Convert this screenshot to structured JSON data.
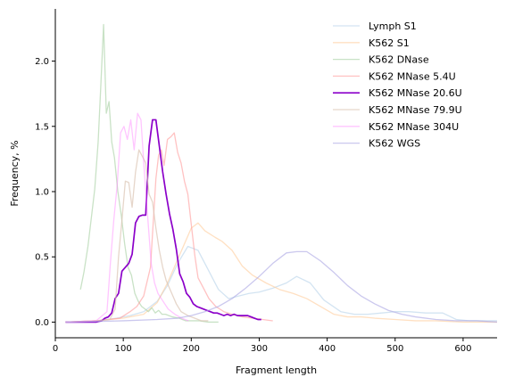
{
  "chart_data": {
    "type": "line",
    "title": "",
    "xlabel": "Fragment length",
    "ylabel": "Frequency, %",
    "xlim": [
      0,
      650
    ],
    "ylim": [
      -0.12,
      2.4
    ],
    "xticks": [
      0,
      100,
      200,
      300,
      400,
      500,
      600
    ],
    "yticks": [
      0.0,
      0.5,
      1.0,
      1.5,
      2.0
    ],
    "xtick_labels": [
      "0",
      "100",
      "200",
      "300",
      "400",
      "500",
      "600"
    ],
    "ytick_labels": [
      "0.0",
      "0.5",
      "1.0",
      "1.5",
      "2.0"
    ],
    "grid": false,
    "legend_position": "top-right",
    "series": [
      {
        "name": "Lymph S1",
        "color": "#aecde8",
        "alpha": 0.55,
        "width": 1.3,
        "x": [
          15,
          60,
          90,
          110,
          130,
          150,
          165,
          180,
          195,
          210,
          225,
          240,
          255,
          270,
          285,
          300,
          320,
          340,
          355,
          375,
          395,
          420,
          440,
          460,
          480,
          500,
          520,
          545,
          570,
          590,
          610,
          630,
          650
        ],
        "y": [
          0.0,
          0.01,
          0.03,
          0.05,
          0.08,
          0.16,
          0.28,
          0.45,
          0.58,
          0.55,
          0.4,
          0.25,
          0.18,
          0.2,
          0.22,
          0.23,
          0.26,
          0.3,
          0.35,
          0.3,
          0.17,
          0.08,
          0.06,
          0.06,
          0.07,
          0.08,
          0.08,
          0.07,
          0.07,
          0.02,
          0.01,
          0.01,
          0.01
        ]
      },
      {
        "name": "K562 S1",
        "color": "#ffcc99",
        "alpha": 0.6,
        "width": 1.3,
        "x": [
          15,
          60,
          100,
          130,
          150,
          165,
          180,
          190,
          200,
          210,
          220,
          235,
          245,
          260,
          275,
          290,
          310,
          330,
          350,
          370,
          390,
          410,
          430,
          450,
          470,
          500,
          530,
          560,
          600,
          650
        ],
        "y": [
          0.0,
          0.01,
          0.03,
          0.06,
          0.15,
          0.3,
          0.48,
          0.6,
          0.72,
          0.76,
          0.7,
          0.65,
          0.62,
          0.55,
          0.43,
          0.36,
          0.3,
          0.25,
          0.22,
          0.18,
          0.12,
          0.06,
          0.04,
          0.04,
          0.03,
          0.02,
          0.01,
          0.01,
          0.0,
          0.0
        ]
      },
      {
        "name": "K562 DNase",
        "color": "#a5cfa0",
        "alpha": 0.6,
        "width": 1.3,
        "x": [
          37,
          42,
          48,
          53,
          58,
          63,
          67,
          71,
          75,
          79,
          83,
          87,
          92,
          97,
          102,
          107,
          112,
          117,
          122,
          127,
          132,
          137,
          142,
          147,
          152,
          157,
          162,
          172,
          182,
          192,
          202,
          212,
          225,
          240
        ],
        "y": [
          0.25,
          0.38,
          0.58,
          0.8,
          1.02,
          1.38,
          1.82,
          2.28,
          1.6,
          1.69,
          1.38,
          1.26,
          1.0,
          0.82,
          0.6,
          0.42,
          0.36,
          0.22,
          0.16,
          0.12,
          0.1,
          0.08,
          0.11,
          0.07,
          0.09,
          0.06,
          0.06,
          0.04,
          0.03,
          0.01,
          0.01,
          0.01,
          0.0,
          0.0
        ]
      },
      {
        "name": "K562 MNase 5.4U",
        "color": "#ff9999",
        "alpha": 0.6,
        "width": 1.3,
        "x": [
          15,
          60,
          95,
          110,
          120,
          130,
          140,
          148,
          152,
          156,
          160,
          165,
          170,
          175,
          180,
          185,
          190,
          195,
          200,
          205,
          210,
          218,
          226,
          236,
          248,
          260,
          275,
          290,
          305,
          320
        ],
        "y": [
          0.0,
          0.01,
          0.03,
          0.08,
          0.12,
          0.2,
          0.42,
          1.1,
          1.28,
          1.32,
          1.2,
          1.4,
          1.42,
          1.45,
          1.3,
          1.22,
          1.08,
          0.98,
          0.75,
          0.52,
          0.34,
          0.26,
          0.18,
          0.12,
          0.08,
          0.06,
          0.04,
          0.03,
          0.02,
          0.01
        ]
      },
      {
        "name": "K562 MNase 20.6U",
        "color": "#8b00c9",
        "alpha": 1,
        "width": 1.7,
        "x": [
          15,
          50,
          60,
          68,
          73,
          78,
          83,
          88,
          93,
          98,
          103,
          108,
          113,
          118,
          123,
          128,
          133,
          138,
          143,
          148,
          153,
          158,
          163,
          168,
          173,
          178,
          183,
          188,
          193,
          198,
          203,
          208,
          213,
          218,
          223,
          228,
          233,
          238,
          243,
          248,
          253,
          258,
          263,
          268,
          273,
          278,
          283,
          288,
          293,
          298,
          303
        ],
        "y": [
          0.0,
          0.0,
          0.0,
          0.01,
          0.03,
          0.04,
          0.07,
          0.18,
          0.22,
          0.39,
          0.42,
          0.45,
          0.52,
          0.76,
          0.81,
          0.82,
          0.82,
          1.35,
          1.55,
          1.55,
          1.35,
          1.15,
          0.98,
          0.83,
          0.71,
          0.56,
          0.37,
          0.31,
          0.22,
          0.19,
          0.14,
          0.12,
          0.11,
          0.1,
          0.09,
          0.08,
          0.07,
          0.07,
          0.06,
          0.05,
          0.06,
          0.05,
          0.06,
          0.05,
          0.05,
          0.05,
          0.05,
          0.04,
          0.03,
          0.02,
          0.02
        ]
      },
      {
        "name": "K562 MNase 79.9U",
        "color": "#dbc4b4",
        "alpha": 0.7,
        "width": 1.3,
        "x": [
          15,
          60,
          80,
          88,
          93,
          98,
          103,
          108,
          113,
          118,
          123,
          128,
          133,
          138,
          143,
          148,
          153,
          158,
          163,
          168,
          173,
          178,
          185,
          195,
          205,
          215,
          225
        ],
        "y": [
          0.0,
          0.01,
          0.02,
          0.1,
          0.5,
          0.78,
          1.08,
          1.07,
          0.88,
          1.15,
          1.32,
          1.27,
          1.22,
          0.98,
          0.92,
          0.72,
          0.55,
          0.42,
          0.32,
          0.26,
          0.2,
          0.14,
          0.08,
          0.05,
          0.03,
          0.01,
          0.01
        ]
      },
      {
        "name": "K562 MNase 304U",
        "color": "#ff80ff",
        "alpha": 0.45,
        "width": 1.3,
        "x": [
          15,
          60,
          76,
          81,
          86,
          91,
          96,
          101,
          106,
          111,
          116,
          121,
          126,
          131,
          136,
          141,
          146,
          151,
          156,
          161,
          166,
          171,
          176,
          186,
          196
        ],
        "y": [
          0.0,
          0.01,
          0.08,
          0.45,
          0.78,
          1.05,
          1.45,
          1.5,
          1.4,
          1.55,
          1.32,
          1.6,
          1.55,
          1.15,
          0.8,
          0.45,
          0.3,
          0.22,
          0.18,
          0.14,
          0.1,
          0.08,
          0.06,
          0.03,
          0.01
        ]
      },
      {
        "name": "K562 WGS",
        "color": "#a9a3e3",
        "alpha": 0.6,
        "width": 1.3,
        "x": [
          15,
          100,
          150,
          180,
          200,
          220,
          240,
          260,
          280,
          300,
          320,
          340,
          355,
          370,
          390,
          410,
          430,
          450,
          470,
          490,
          510,
          530,
          560,
          590,
          620,
          650
        ],
        "y": [
          0.0,
          0.01,
          0.02,
          0.03,
          0.05,
          0.08,
          0.12,
          0.18,
          0.26,
          0.35,
          0.45,
          0.53,
          0.54,
          0.54,
          0.47,
          0.38,
          0.28,
          0.2,
          0.14,
          0.09,
          0.06,
          0.04,
          0.02,
          0.01,
          0.01,
          0.0
        ]
      }
    ]
  }
}
